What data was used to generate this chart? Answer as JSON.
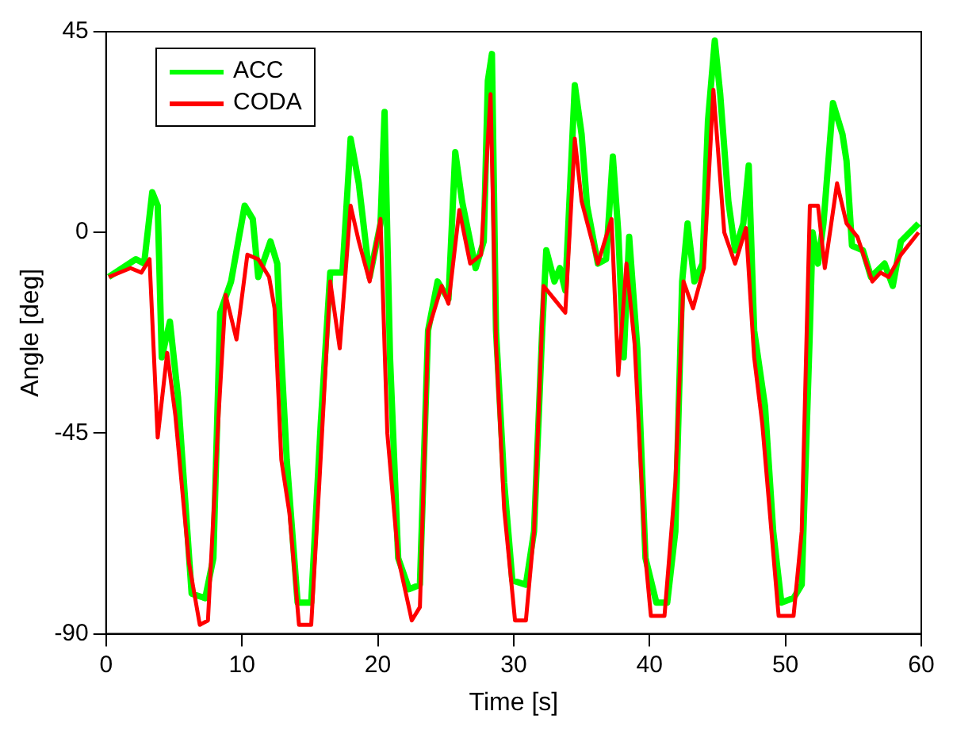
{
  "chart_data": {
    "type": "line",
    "xlabel": "Time [s]",
    "ylabel": "Angle [deg]",
    "xlim": [
      0,
      60
    ],
    "xticks": [
      0,
      10,
      20,
      30,
      40,
      50,
      60
    ],
    "ylim": [
      -90,
      45
    ],
    "yticks": [
      -90,
      -45,
      0,
      45
    ],
    "legend": "top left",
    "marker": "none",
    "line_style": "solid",
    "series": [
      {
        "name": "ACC",
        "color": "#00ff00",
        "x": [
          0.2,
          2.2,
          2.8,
          3.4,
          3.8,
          4.1,
          4.7,
          5.3,
          6.3,
          7.3,
          7.9,
          8.4,
          9.2,
          10.2,
          10.8,
          11.2,
          12.1,
          12.6,
          12.9,
          13.3,
          14.1,
          15.1,
          15.8,
          16.5,
          17.4,
          18.0,
          18.6,
          19.4,
          20.2,
          20.5,
          20.9,
          21.5,
          22.3,
          23.1,
          23.7,
          24.4,
          25.2,
          25.7,
          26.2,
          27.2,
          27.8,
          28.1,
          28.4,
          28.7,
          29.3,
          29.9,
          30.9,
          31.5,
          32.1,
          32.4,
          33.0,
          33.4,
          33.8,
          34.5,
          35.0,
          35.4,
          36.2,
          36.8,
          37.3,
          37.7,
          38.1,
          38.5,
          39.1,
          39.7,
          40.5,
          41.3,
          41.9,
          42.4,
          42.8,
          43.3,
          43.9,
          44.3,
          44.8,
          45.2,
          45.8,
          46.3,
          46.9,
          47.3,
          47.7,
          48.5,
          49.1,
          49.7,
          50.6,
          51.2,
          51.8,
          52.0,
          52.4,
          52.8,
          53.5,
          54.2,
          54.5,
          54.9,
          55.7,
          56.3,
          57.3,
          57.9,
          58.5,
          59.8
        ],
        "values": [
          -10,
          -6,
          -7,
          9,
          6,
          -28,
          -20,
          -37,
          -81,
          -82,
          -73,
          -18,
          -11,
          6,
          3,
          -10,
          -2,
          -7,
          -28,
          -51,
          -83,
          -83,
          -43,
          -9,
          -9,
          21,
          11,
          -10,
          2,
          27,
          -28,
          -73,
          -80,
          -79,
          -22,
          -11,
          -15,
          18,
          7,
          -8,
          -2,
          34,
          40,
          -22,
          -56,
          -78,
          -79,
          -67,
          -22,
          -4,
          -11,
          -8,
          -13,
          33,
          22,
          6,
          -7,
          -6,
          17,
          0,
          -28,
          -1,
          -26,
          -73,
          -83,
          -83,
          -67,
          -11,
          2,
          -11,
          -7,
          25,
          43,
          31,
          7,
          -4,
          2,
          15,
          -22,
          -39,
          -67,
          -83,
          -82,
          -79,
          -22,
          0,
          -7,
          2,
          29,
          22,
          16,
          -3,
          -4,
          -10,
          -7,
          -12,
          -2,
          2
        ]
      },
      {
        "name": "CODA",
        "color": "#ff0000",
        "x": [
          0.2,
          1.8,
          2.6,
          3.2,
          3.8,
          4.5,
          5.1,
          6.1,
          6.9,
          7.5,
          8.3,
          8.8,
          9.6,
          10.4,
          11.2,
          12.0,
          12.4,
          12.9,
          13.5,
          14.2,
          15.1,
          15.7,
          16.5,
          17.2,
          18.0,
          18.6,
          19.4,
          20.2,
          20.7,
          21.5,
          22.5,
          23.1,
          23.7,
          24.7,
          25.2,
          26.0,
          26.8,
          27.6,
          28.3,
          28.7,
          29.3,
          30.1,
          30.9,
          31.5,
          32.2,
          33.0,
          33.8,
          34.5,
          35.0,
          36.2,
          37.2,
          37.7,
          38.3,
          38.9,
          39.7,
          40.1,
          41.1,
          41.9,
          42.5,
          43.2,
          44.0,
          44.7,
          45.5,
          46.3,
          47.1,
          47.7,
          48.3,
          49.5,
          50.6,
          51.2,
          51.8,
          52.4,
          52.9,
          53.8,
          54.5,
          55.3,
          56.4,
          57.0,
          57.6,
          58.5,
          59.8
        ],
        "values": [
          -10,
          -8,
          -9,
          -6,
          -46,
          -27,
          -41,
          -74,
          -88,
          -87,
          -40,
          -14,
          -24,
          -5,
          -6,
          -10,
          -17,
          -51,
          -63,
          -88,
          -88,
          -56,
          -11,
          -26,
          6,
          -2,
          -11,
          3,
          -45,
          -73,
          -87,
          -84,
          -22,
          -12,
          -16,
          5,
          -7,
          -5,
          31,
          -25,
          -62,
          -87,
          -87,
          -67,
          -12,
          -15,
          -18,
          21,
          7,
          -7,
          3,
          -32,
          -7,
          -25,
          -73,
          -86,
          -86,
          -56,
          -11,
          -17,
          -8,
          32,
          0,
          -7,
          1,
          -28,
          -43,
          -86,
          -86,
          -67,
          6,
          6,
          -8,
          11,
          2,
          -1,
          -11,
          -9,
          -10,
          -5,
          0
        ]
      }
    ]
  }
}
